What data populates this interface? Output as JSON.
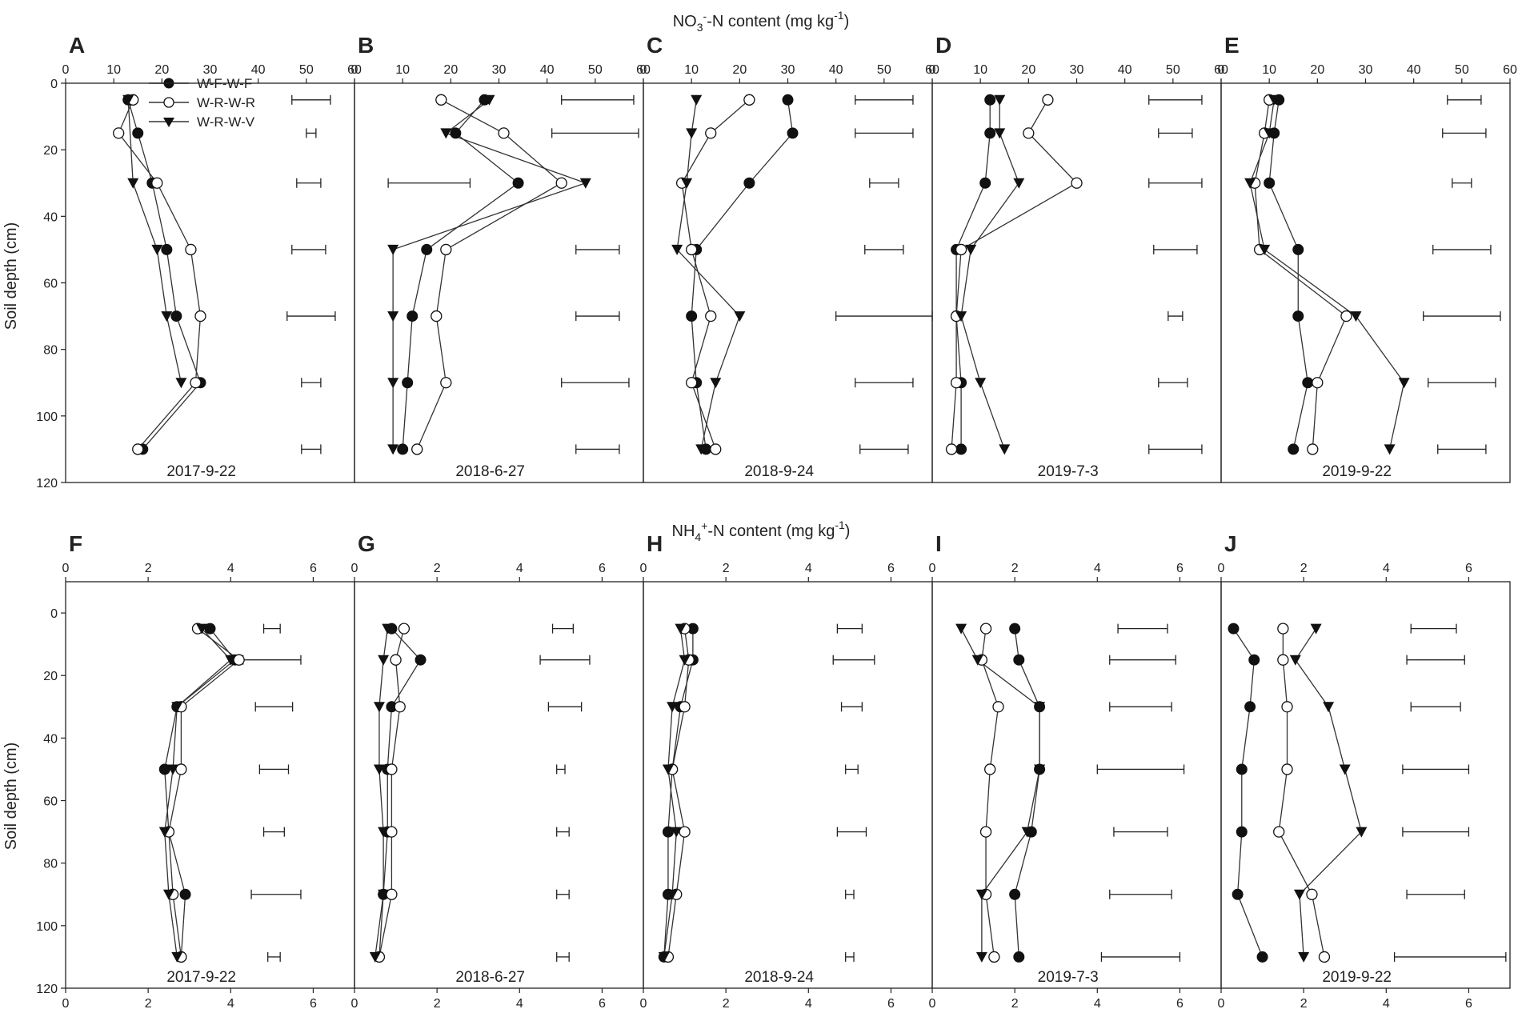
{
  "figure": {
    "top_title_main": "NO",
    "top_title_sub": "3",
    "top_title_sup": "-",
    "top_title_rest": "-N content (mg kg",
    "top_title_unit_sup": "-1",
    "top_title_close": ")",
    "bottom_title_main": "NH",
    "bottom_title_sub": "4",
    "bottom_title_sup": "+",
    "bottom_title_rest": "-N content (mg kg",
    "bottom_title_unit_sup": "-1",
    "bottom_title_close": ")",
    "ylabel": "Soil depth (cm)"
  },
  "legend": [
    {
      "name": "W-F-W-F",
      "marker": "filled-circle"
    },
    {
      "name": "W-R-W-R",
      "marker": "open-circle"
    },
    {
      "name": "W-R-W-V",
      "marker": "filled-triangle-down"
    }
  ],
  "chart_data": [
    {
      "letter": "A",
      "type": "line",
      "date": "2017-9-22",
      "xlabel": "NO3- -N content (mg kg-1)",
      "ylabel": "Soil depth (cm)",
      "xlim": [
        0,
        60
      ],
      "xticks": [
        0,
        10,
        20,
        30,
        40,
        50,
        60
      ],
      "ylim": [
        120,
        0
      ],
      "yticks": [
        0,
        20,
        40,
        60,
        80,
        100,
        120
      ],
      "depths": [
        5,
        15,
        30,
        50,
        70,
        90,
        110
      ],
      "series": [
        {
          "name": "W-F-W-F",
          "values": [
            13,
            15,
            18,
            21,
            23,
            28,
            16
          ]
        },
        {
          "name": "W-R-W-R",
          "values": [
            14,
            11,
            19,
            26,
            28,
            27,
            15
          ]
        },
        {
          "name": "W-R-W-V",
          "values": [
            13,
            null,
            14,
            19,
            21,
            24,
            null
          ]
        }
      ],
      "error_bars": [
        {
          "y": 5,
          "x1": 47,
          "x2": 55
        },
        {
          "y": 15,
          "x1": 50,
          "x2": 52
        },
        {
          "y": 30,
          "x1": 48,
          "x2": 53
        },
        {
          "y": 50,
          "x1": 47,
          "x2": 54
        },
        {
          "y": 70,
          "x1": 46,
          "x2": 56
        },
        {
          "y": 90,
          "x1": 49,
          "x2": 53
        },
        {
          "y": 110,
          "x1": 49,
          "x2": 53
        }
      ]
    },
    {
      "letter": "B",
      "type": "line",
      "date": "2018-6-27",
      "xlabel": "NO3- -N content (mg kg-1)",
      "ylabel": "Soil depth (cm)",
      "xlim": [
        0,
        60
      ],
      "xticks": [
        0,
        10,
        20,
        30,
        40,
        50,
        60
      ],
      "ylim": [
        120,
        0
      ],
      "yticks": [
        0,
        20,
        40,
        60,
        80,
        100,
        120
      ],
      "depths": [
        5,
        15,
        30,
        50,
        70,
        90,
        110
      ],
      "series": [
        {
          "name": "W-F-W-F",
          "values": [
            27,
            21,
            34,
            15,
            12,
            11,
            10
          ]
        },
        {
          "name": "W-R-W-R",
          "values": [
            18,
            31,
            43,
            19,
            17,
            19,
            13
          ]
        },
        {
          "name": "W-R-W-V",
          "values": [
            28,
            19,
            48,
            8,
            8,
            8,
            8
          ]
        }
      ],
      "error_bars": [
        {
          "y": 5,
          "x1": 43,
          "x2": 58
        },
        {
          "y": 15,
          "x1": 41,
          "x2": 59
        },
        {
          "y": 30,
          "x1": 7,
          "x2": 24
        },
        {
          "y": 50,
          "x1": 46,
          "x2": 55
        },
        {
          "y": 70,
          "x1": 46,
          "x2": 55
        },
        {
          "y": 90,
          "x1": 43,
          "x2": 57
        },
        {
          "y": 110,
          "x1": 46,
          "x2": 55
        }
      ]
    },
    {
      "letter": "C",
      "type": "line",
      "date": "2018-9-24",
      "xlabel": "NO3- -N content (mg kg-1)",
      "ylabel": "Soil depth (cm)",
      "xlim": [
        0,
        60
      ],
      "xticks": [
        0,
        10,
        20,
        30,
        40,
        50,
        60
      ],
      "ylim": [
        120,
        0
      ],
      "yticks": [
        0,
        20,
        40,
        60,
        80,
        100,
        120
      ],
      "depths": [
        5,
        15,
        30,
        50,
        70,
        90,
        110
      ],
      "series": [
        {
          "name": "W-F-W-F",
          "values": [
            30,
            31,
            22,
            11,
            10,
            11,
            13
          ]
        },
        {
          "name": "W-R-W-R",
          "values": [
            22,
            14,
            8,
            10,
            14,
            10,
            15
          ]
        },
        {
          "name": "W-R-W-V",
          "values": [
            11,
            10,
            9,
            7,
            20,
            15,
            12
          ]
        }
      ],
      "error_bars": [
        {
          "y": 5,
          "x1": 44,
          "x2": 56
        },
        {
          "y": 15,
          "x1": 44,
          "x2": 56
        },
        {
          "y": 30,
          "x1": 47,
          "x2": 53
        },
        {
          "y": 50,
          "x1": 46,
          "x2": 54
        },
        {
          "y": 70,
          "x1": 40,
          "x2": 60
        },
        {
          "y": 90,
          "x1": 44,
          "x2": 56
        },
        {
          "y": 110,
          "x1": 45,
          "x2": 55
        }
      ]
    },
    {
      "letter": "D",
      "type": "line",
      "date": "2019-7-3",
      "xlabel": "NO3- -N content (mg kg-1)",
      "ylabel": "Soil depth (cm)",
      "xlim": [
        0,
        60
      ],
      "xticks": [
        0,
        10,
        20,
        30,
        40,
        50,
        60
      ],
      "ylim": [
        120,
        0
      ],
      "yticks": [
        0,
        20,
        40,
        60,
        80,
        100,
        120
      ],
      "depths": [
        5,
        15,
        30,
        50,
        70,
        90,
        110
      ],
      "series": [
        {
          "name": "W-F-W-F",
          "values": [
            12,
            12,
            11,
            5,
            5,
            6,
            6
          ]
        },
        {
          "name": "W-R-W-R",
          "values": [
            24,
            20,
            30,
            6,
            5,
            5,
            4
          ]
        },
        {
          "name": "W-R-W-V",
          "values": [
            14,
            14,
            18,
            8,
            6,
            10,
            15
          ]
        }
      ],
      "error_bars": [
        {
          "y": 5,
          "x1": 45,
          "x2": 56
        },
        {
          "y": 15,
          "x1": 47,
          "x2": 54
        },
        {
          "y": 30,
          "x1": 45,
          "x2": 56
        },
        {
          "y": 50,
          "x1": 46,
          "x2": 55
        },
        {
          "y": 70,
          "x1": 49,
          "x2": 52
        },
        {
          "y": 90,
          "x1": 47,
          "x2": 53
        },
        {
          "y": 110,
          "x1": 45,
          "x2": 56
        }
      ]
    },
    {
      "letter": "E",
      "type": "line",
      "date": "2019-9-22",
      "xlabel": "NO3- -N content (mg kg-1)",
      "ylabel": "Soil depth (cm)",
      "xlim": [
        0,
        60
      ],
      "xticks": [
        0,
        10,
        20,
        30,
        40,
        50,
        60
      ],
      "ylim": [
        120,
        0
      ],
      "yticks": [
        0,
        20,
        40,
        60,
        80,
        100,
        120
      ],
      "depths": [
        5,
        15,
        30,
        50,
        70,
        90,
        110
      ],
      "series": [
        {
          "name": "W-F-W-F",
          "values": [
            12,
            11,
            10,
            16,
            16,
            18,
            15
          ]
        },
        {
          "name": "W-R-W-R",
          "values": [
            10,
            9,
            7,
            8,
            26,
            20,
            19
          ]
        },
        {
          "name": "W-R-W-V",
          "values": [
            11,
            10,
            6,
            9,
            28,
            38,
            35
          ]
        }
      ],
      "error_bars": [
        {
          "y": 5,
          "x1": 47,
          "x2": 54
        },
        {
          "y": 15,
          "x1": 46,
          "x2": 55
        },
        {
          "y": 30,
          "x1": 48,
          "x2": 52
        },
        {
          "y": 50,
          "x1": 44,
          "x2": 56
        },
        {
          "y": 70,
          "x1": 42,
          "x2": 58
        },
        {
          "y": 90,
          "x1": 43,
          "x2": 57
        },
        {
          "y": 110,
          "x1": 45,
          "x2": 55
        }
      ]
    },
    {
      "letter": "F",
      "type": "line",
      "date": "2017-9-22",
      "xlabel": "NH4+ -N content (mg kg-1)",
      "ylabel": "Soil depth (cm)",
      "xlim": [
        0,
        7
      ],
      "xticks": [
        0,
        2,
        4,
        6
      ],
      "ylim": [
        120,
        -10
      ],
      "yticks": [
        0,
        20,
        40,
        60,
        80,
        100,
        120
      ],
      "depths": [
        5,
        15,
        30,
        50,
        70,
        90,
        110
      ],
      "series": [
        {
          "name": "W-F-W-F",
          "values": [
            3.5,
            4.1,
            2.7,
            2.4,
            2.5,
            2.9,
            2.8
          ]
        },
        {
          "name": "W-R-W-R",
          "values": [
            3.2,
            4.2,
            2.8,
            2.8,
            2.5,
            2.6,
            2.8
          ]
        },
        {
          "name": "W-R-W-V",
          "values": [
            3.3,
            4.0,
            2.7,
            2.6,
            2.4,
            2.5,
            2.7
          ]
        }
      ],
      "error_bars": [
        {
          "y": 5,
          "x1": 4.8,
          "x2": 5.2
        },
        {
          "y": 15,
          "x1": 4.3,
          "x2": 5.7
        },
        {
          "y": 30,
          "x1": 4.6,
          "x2": 5.5
        },
        {
          "y": 50,
          "x1": 4.7,
          "x2": 5.4
        },
        {
          "y": 70,
          "x1": 4.8,
          "x2": 5.3
        },
        {
          "y": 90,
          "x1": 4.5,
          "x2": 5.7
        },
        {
          "y": 110,
          "x1": 4.9,
          "x2": 5.2
        }
      ]
    },
    {
      "letter": "G",
      "type": "line",
      "date": "2018-6-27",
      "xlabel": "NH4+ -N content (mg kg-1)",
      "ylabel": "Soil depth (cm)",
      "xlim": [
        0,
        7
      ],
      "xticks": [
        0,
        2,
        4,
        6
      ],
      "ylim": [
        120,
        -10
      ],
      "yticks": [
        0,
        20,
        40,
        60,
        80,
        100,
        120
      ],
      "depths": [
        5,
        15,
        30,
        50,
        70,
        90,
        110
      ],
      "series": [
        {
          "name": "W-F-W-F",
          "values": [
            0.9,
            1.6,
            0.9,
            0.8,
            0.8,
            0.7,
            0.6
          ]
        },
        {
          "name": "W-R-W-R",
          "values": [
            1.2,
            1.0,
            1.1,
            0.9,
            0.9,
            0.9,
            0.6
          ]
        },
        {
          "name": "W-R-W-V",
          "values": [
            0.8,
            0.7,
            0.6,
            0.6,
            0.7,
            0.7,
            0.5
          ]
        }
      ],
      "error_bars": [
        {
          "y": 5,
          "x1": 4.8,
          "x2": 5.3
        },
        {
          "y": 15,
          "x1": 4.5,
          "x2": 5.7
        },
        {
          "y": 30,
          "x1": 4.7,
          "x2": 5.5
        },
        {
          "y": 50,
          "x1": 4.9,
          "x2": 5.1
        },
        {
          "y": 70,
          "x1": 4.9,
          "x2": 5.2
        },
        {
          "y": 90,
          "x1": 4.9,
          "x2": 5.2
        },
        {
          "y": 110,
          "x1": 4.9,
          "x2": 5.2
        }
      ]
    },
    {
      "letter": "H",
      "type": "line",
      "date": "2018-9-24",
      "xlabel": "NH4+ -N content (mg kg-1)",
      "ylabel": "Soil depth (cm)",
      "xlim": [
        0,
        7
      ],
      "xticks": [
        0,
        2,
        4,
        6
      ],
      "ylim": [
        120,
        -10
      ],
      "yticks": [
        0,
        20,
        40,
        60,
        80,
        100,
        120
      ],
      "depths": [
        5,
        15,
        30,
        50,
        70,
        90,
        110
      ],
      "series": [
        {
          "name": "W-F-W-F",
          "values": [
            1.2,
            1.2,
            0.9,
            0.7,
            0.6,
            0.6,
            0.5
          ]
        },
        {
          "name": "W-R-W-R",
          "values": [
            1.0,
            1.1,
            1.0,
            0.7,
            1.0,
            0.8,
            0.6
          ]
        },
        {
          "name": "W-R-W-V",
          "values": [
            0.9,
            1.0,
            0.7,
            0.6,
            0.8,
            0.7,
            0.5
          ]
        }
      ],
      "error_bars": [
        {
          "y": 5,
          "x1": 4.7,
          "x2": 5.3
        },
        {
          "y": 15,
          "x1": 4.6,
          "x2": 5.6
        },
        {
          "y": 30,
          "x1": 4.8,
          "x2": 5.3
        },
        {
          "y": 50,
          "x1": 4.9,
          "x2": 5.2
        },
        {
          "y": 70,
          "x1": 4.7,
          "x2": 5.4
        },
        {
          "y": 90,
          "x1": 4.9,
          "x2": 5.1
        },
        {
          "y": 110,
          "x1": 4.9,
          "x2": 5.1
        }
      ]
    },
    {
      "letter": "I",
      "type": "line",
      "date": "2019-7-3",
      "xlabel": "NH4+ -N content (mg kg-1)",
      "ylabel": "Soil depth (cm)",
      "xlim": [
        0,
        7
      ],
      "xticks": [
        0,
        2,
        4,
        6
      ],
      "ylim": [
        120,
        -10
      ],
      "yticks": [
        0,
        20,
        40,
        60,
        80,
        100,
        120
      ],
      "depths": [
        5,
        15,
        30,
        50,
        70,
        90,
        110
      ],
      "series": [
        {
          "name": "W-F-W-F",
          "values": [
            2.0,
            2.1,
            2.6,
            2.6,
            2.4,
            2.0,
            2.1
          ]
        },
        {
          "name": "W-R-W-R",
          "values": [
            1.3,
            1.2,
            1.6,
            1.4,
            1.3,
            1.3,
            1.5
          ]
        },
        {
          "name": "W-R-W-V",
          "values": [
            0.7,
            1.1,
            2.6,
            2.6,
            2.3,
            1.2,
            1.2
          ]
        }
      ],
      "error_bars": [
        {
          "y": 5,
          "x1": 4.5,
          "x2": 5.7
        },
        {
          "y": 15,
          "x1": 4.3,
          "x2": 5.9
        },
        {
          "y": 30,
          "x1": 4.3,
          "x2": 5.8
        },
        {
          "y": 50,
          "x1": 4.0,
          "x2": 6.1
        },
        {
          "y": 70,
          "x1": 4.4,
          "x2": 5.7
        },
        {
          "y": 90,
          "x1": 4.3,
          "x2": 5.8
        },
        {
          "y": 110,
          "x1": 4.1,
          "x2": 6.0
        }
      ]
    },
    {
      "letter": "J",
      "type": "line",
      "date": "2019-9-22",
      "xlabel": "NH4+ -N content (mg kg-1)",
      "ylabel": "Soil depth (cm)",
      "xlim": [
        0,
        7
      ],
      "xticks": [
        0,
        2,
        4,
        6
      ],
      "ylim": [
        120,
        -10
      ],
      "yticks": [
        0,
        20,
        40,
        60,
        80,
        100,
        120
      ],
      "depths": [
        5,
        15,
        30,
        50,
        70,
        90,
        110
      ],
      "series": [
        {
          "name": "W-F-W-F",
          "values": [
            0.3,
            0.8,
            0.7,
            0.5,
            0.5,
            0.4,
            1.0
          ]
        },
        {
          "name": "W-R-W-R",
          "values": [
            1.5,
            1.5,
            1.6,
            1.6,
            1.4,
            2.2,
            2.5
          ]
        },
        {
          "name": "W-R-W-V",
          "values": [
            2.3,
            1.8,
            2.6,
            3.0,
            3.4,
            1.9,
            2.0
          ]
        }
      ],
      "error_bars": [
        {
          "y": 5,
          "x1": 4.6,
          "x2": 5.7
        },
        {
          "y": 15,
          "x1": 4.5,
          "x2": 5.9
        },
        {
          "y": 30,
          "x1": 4.6,
          "x2": 5.8
        },
        {
          "y": 50,
          "x1": 4.4,
          "x2": 6.0
        },
        {
          "y": 70,
          "x1": 4.4,
          "x2": 6.0
        },
        {
          "y": 90,
          "x1": 4.5,
          "x2": 5.9
        },
        {
          "y": 110,
          "x1": 4.2,
          "x2": 6.9
        }
      ]
    }
  ]
}
